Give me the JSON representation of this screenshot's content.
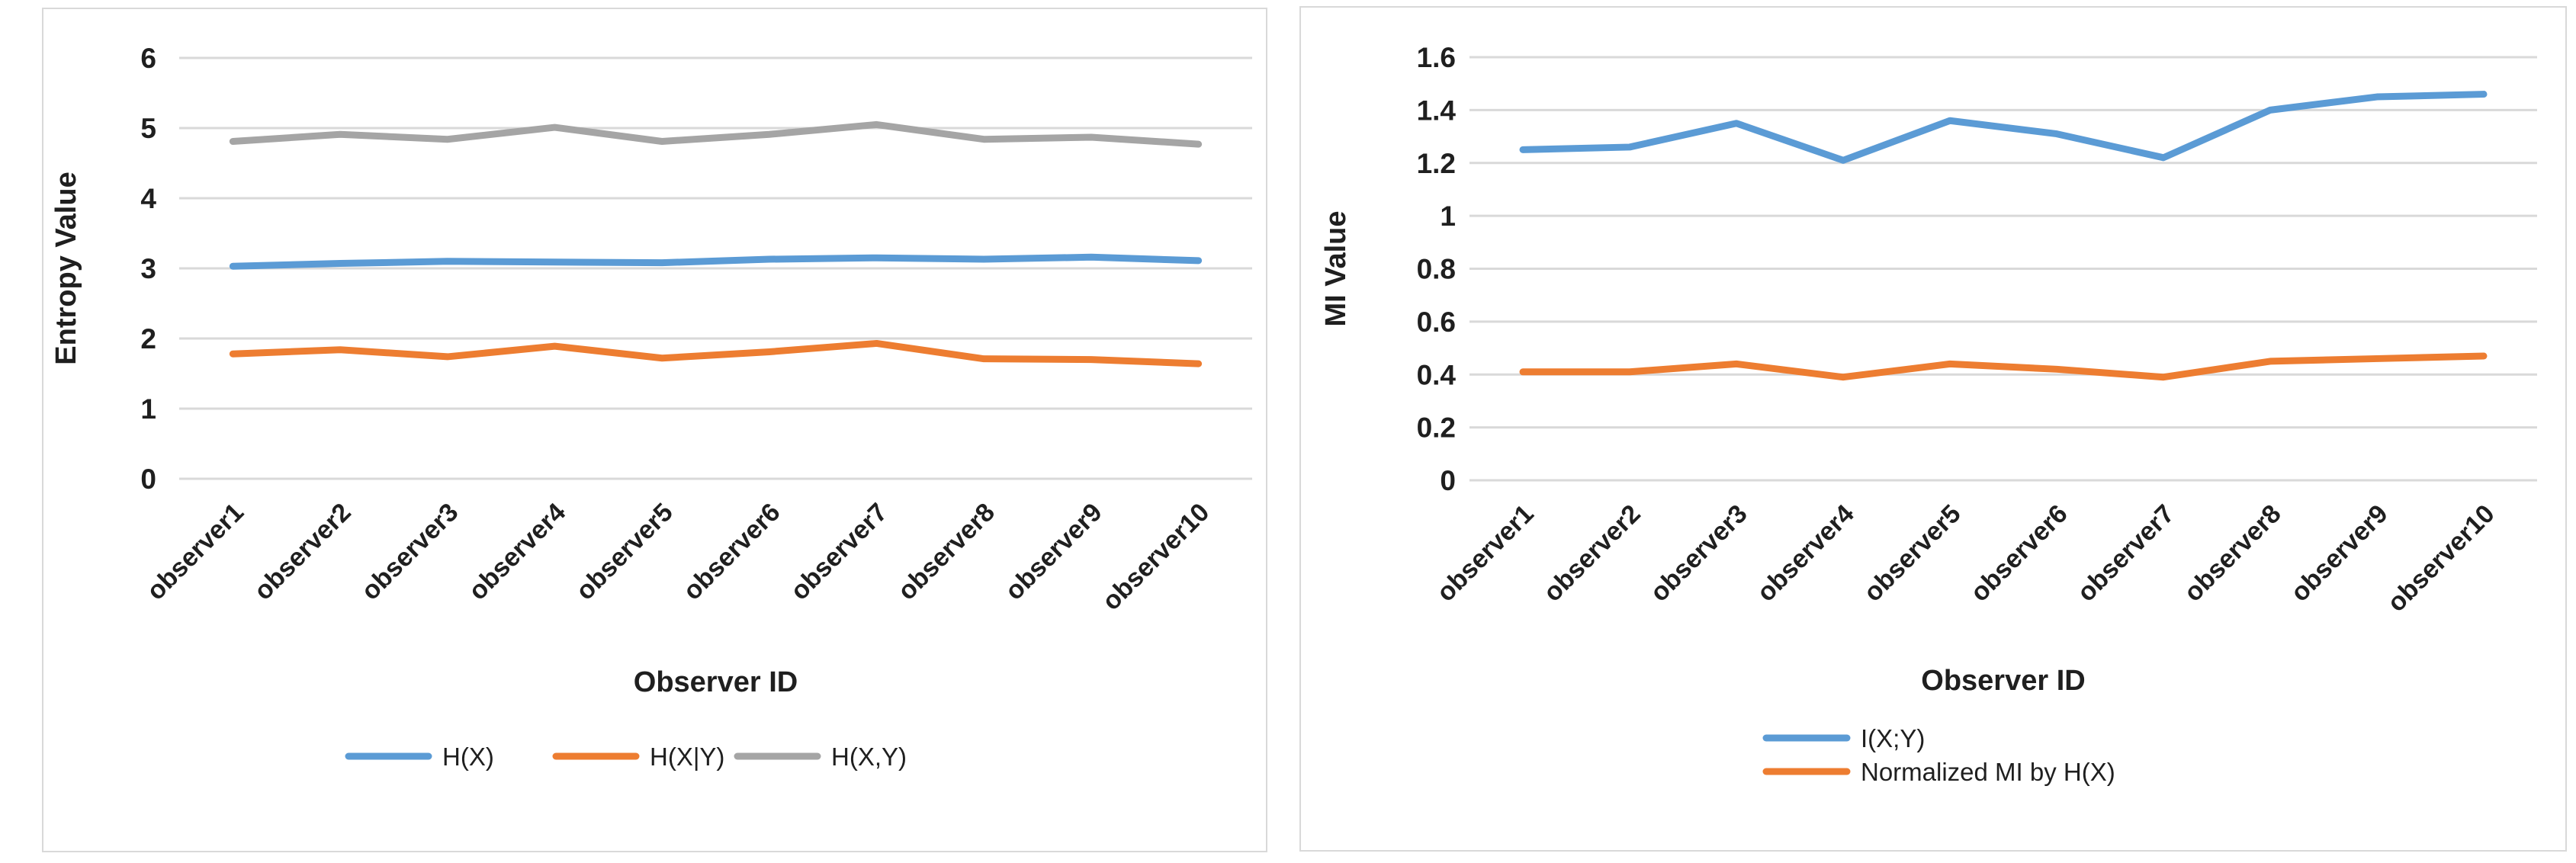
{
  "page": {
    "background": "#ffffff",
    "gridline_color": "#d9d9d9",
    "text_color": "#1f1f1f"
  },
  "chart_data": [
    {
      "type": "line",
      "name": "entropy-chart",
      "ylabel": "Entropy  Value",
      "xlabel": "Observer ID",
      "categories": [
        "observer1",
        "observer2",
        "observer3",
        "observer4",
        "observer5",
        "observer6",
        "observer7",
        "observer8",
        "observer9",
        "observer10"
      ],
      "ylim": [
        0,
        6
      ],
      "yticks": [
        {
          "v": 0,
          "label": "0"
        },
        {
          "v": 1,
          "label": "1"
        },
        {
          "v": 2,
          "label": "2"
        },
        {
          "v": 3,
          "label": "3"
        },
        {
          "v": 4,
          "label": "4"
        },
        {
          "v": 5,
          "label": "5"
        },
        {
          "v": 6,
          "label": "6"
        }
      ],
      "grid": true,
      "legend_position": "bottom-horizontal",
      "series": [
        {
          "name": "H(X)",
          "color": "#5B9BD5",
          "values": [
            3.03,
            3.07,
            3.1,
            3.09,
            3.08,
            3.13,
            3.15,
            3.13,
            3.16,
            3.11
          ]
        },
        {
          "name": "H(X|Y)",
          "color": "#ED7D31",
          "values": [
            1.78,
            1.84,
            1.74,
            1.89,
            1.72,
            1.81,
            1.93,
            1.71,
            1.7,
            1.64
          ]
        },
        {
          "name": "H(X,Y)",
          "color": "#A5A5A5",
          "values": [
            4.81,
            4.91,
            4.84,
            5.01,
            4.81,
            4.91,
            5.05,
            4.84,
            4.87,
            4.77
          ]
        }
      ]
    },
    {
      "type": "line",
      "name": "mi-chart",
      "ylabel": "MI Value",
      "xlabel": "Observer ID",
      "categories": [
        "observer1",
        "observer2",
        "observer3",
        "observer4",
        "observer5",
        "observer6",
        "observer7",
        "observer8",
        "observer9",
        "observer10"
      ],
      "ylim": [
        0,
        1.6
      ],
      "yticks": [
        {
          "v": 0,
          "label": "0"
        },
        {
          "v": 0.2,
          "label": "0.2"
        },
        {
          "v": 0.4,
          "label": "0.4"
        },
        {
          "v": 0.6,
          "label": "0.6"
        },
        {
          "v": 0.8,
          "label": "0.8"
        },
        {
          "v": 1,
          "label": "1"
        },
        {
          "v": 1.2,
          "label": "1.2"
        },
        {
          "v": 1.4,
          "label": "1.4"
        },
        {
          "v": 1.6,
          "label": "1.6"
        }
      ],
      "grid": true,
      "legend_position": "bottom-left-vertical",
      "series": [
        {
          "name": "I(X;Y)",
          "color": "#5B9BD5",
          "values": [
            1.25,
            1.26,
            1.35,
            1.21,
            1.36,
            1.31,
            1.22,
            1.4,
            1.45,
            1.46
          ]
        },
        {
          "name": "Normalized MI by H(X)",
          "color": "#ED7D31",
          "values": [
            0.41,
            0.41,
            0.44,
            0.39,
            0.44,
            0.42,
            0.39,
            0.45,
            0.46,
            0.47
          ]
        }
      ]
    }
  ]
}
